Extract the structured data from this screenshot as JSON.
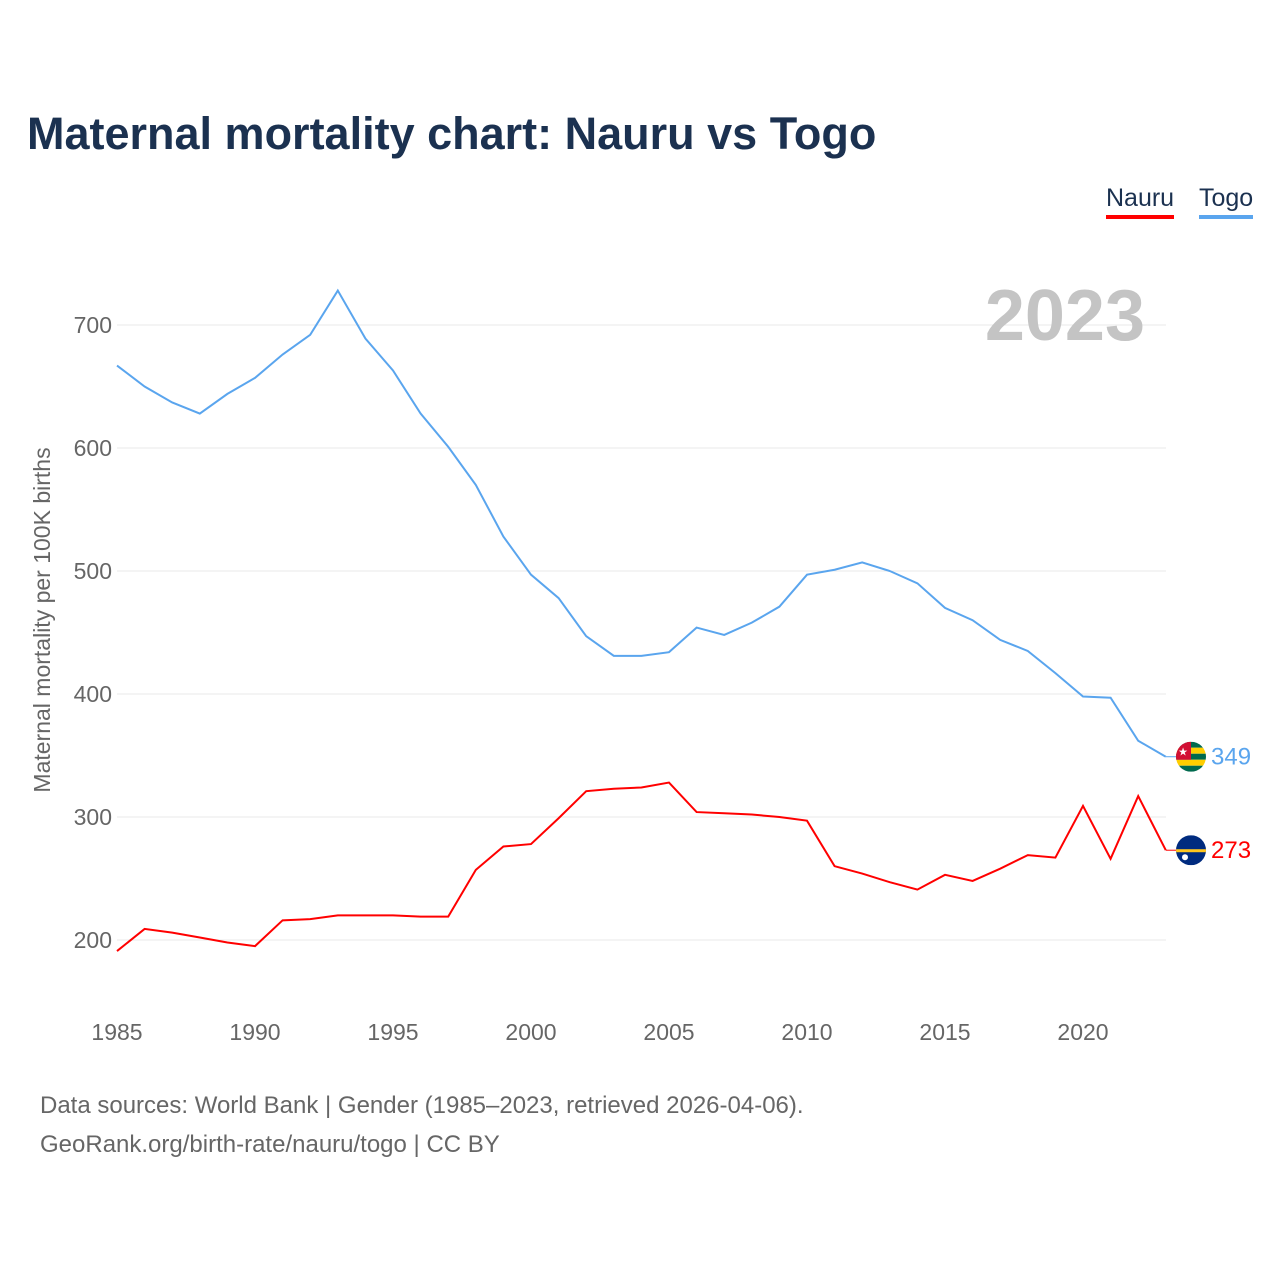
{
  "title": "Maternal mortality chart: Nauru vs Togo",
  "footer": {
    "line1": "Data sources: World Bank | Gender (1985–2023, retrieved 2026-04-06).",
    "line2": "GeoRank.org/birth-rate/nauru/togo | CC BY"
  },
  "chart_data": {
    "type": "line",
    "title": "Maternal mortality chart: Nauru vs Togo",
    "xlabel": "",
    "ylabel": "Maternal mortality per 100K births",
    "year_label": "2023",
    "xlim": [
      1985,
      2023
    ],
    "ylim": [
      150,
      740
    ],
    "yticks": [
      200,
      300,
      400,
      500,
      600,
      700
    ],
    "xticks": [
      1985,
      1990,
      1995,
      2000,
      2005,
      2010,
      2015,
      2020
    ],
    "grid": true,
    "legend_position": "top-right",
    "x": [
      1985,
      1986,
      1987,
      1988,
      1989,
      1990,
      1991,
      1992,
      1993,
      1994,
      1995,
      1996,
      1997,
      1998,
      1999,
      2000,
      2001,
      2002,
      2003,
      2004,
      2005,
      2006,
      2007,
      2008,
      2009,
      2010,
      2011,
      2012,
      2013,
      2014,
      2015,
      2016,
      2017,
      2018,
      2019,
      2020,
      2021,
      2022,
      2023
    ],
    "series": [
      {
        "name": "Nauru",
        "color": "#ff0000",
        "end_label": "273",
        "values": [
          191,
          209,
          206,
          202,
          198,
          195,
          216,
          217,
          220,
          220,
          220,
          219,
          219,
          257,
          276,
          278,
          299,
          321,
          323,
          324,
          328,
          304,
          303,
          302,
          300,
          297,
          260,
          254,
          247,
          241,
          253,
          248,
          258,
          269,
          267,
          309,
          266,
          317,
          273
        ]
      },
      {
        "name": "Togo",
        "color": "#5aa5ee",
        "end_label": "349",
        "values": [
          667,
          650,
          637,
          628,
          644,
          657,
          676,
          692,
          728,
          689,
          663,
          628,
          601,
          570,
          528,
          497,
          478,
          447,
          431,
          431,
          434,
          454,
          448,
          458,
          471,
          497,
          501,
          507,
          500,
          490,
          470,
          460,
          444,
          435,
          417,
          398,
          397,
          362,
          349
        ]
      }
    ]
  }
}
